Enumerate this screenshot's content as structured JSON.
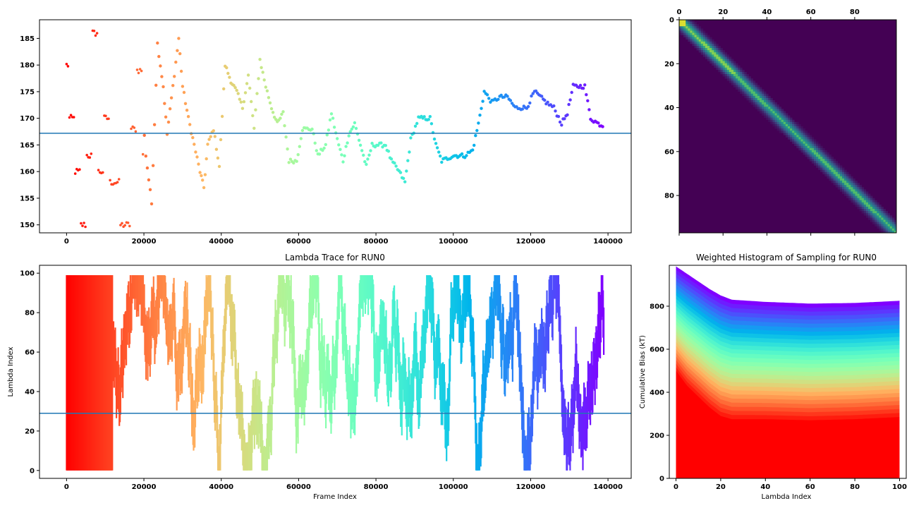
{
  "chart_data": [
    {
      "panel": "top-left",
      "type": "scatter",
      "title": "",
      "xlabel": "",
      "ylabel": "",
      "xlim": [
        -7000,
        146000
      ],
      "ylim": [
        148.5,
        188.5
      ],
      "xticks": [
        0,
        20000,
        40000,
        60000,
        80000,
        100000,
        120000,
        140000
      ],
      "yticks": [
        150,
        155,
        160,
        165,
        170,
        175,
        180,
        185
      ],
      "hline": 167.2,
      "color_scale": "rainbow reversed (red at start, violet at end)",
      "trace": [
        [
          0,
          180
        ],
        [
          1500,
          170
        ],
        [
          3000,
          160
        ],
        [
          4500,
          150
        ],
        [
          6000,
          163
        ],
        [
          7500,
          186
        ],
        [
          9000,
          160
        ],
        [
          10500,
          170
        ],
        [
          12000,
          158
        ],
        [
          15500,
          150
        ],
        [
          17500,
          168
        ],
        [
          19000,
          179
        ],
        [
          20500,
          163
        ],
        [
          22000,
          154
        ],
        [
          23500,
          184
        ],
        [
          25000,
          176
        ],
        [
          26000,
          167
        ],
        [
          27500,
          176
        ],
        [
          29000,
          185
        ],
        [
          30000,
          176
        ],
        [
          31500,
          170
        ],
        [
          33000,
          165
        ],
        [
          34500,
          160
        ],
        [
          35500,
          157
        ],
        [
          36500,
          165
        ],
        [
          38000,
          168
        ],
        [
          39500,
          161
        ],
        [
          41000,
          180
        ],
        [
          42500,
          177
        ],
        [
          44000,
          175
        ],
        [
          45500,
          172
        ],
        [
          47000,
          178
        ],
        [
          48500,
          168
        ],
        [
          50000,
          181
        ],
        [
          51500,
          176
        ],
        [
          53000,
          172
        ],
        [
          54500,
          169
        ],
        [
          56000,
          171
        ],
        [
          57500,
          162
        ],
        [
          59500,
          162
        ],
        [
          61000,
          168
        ],
        [
          63500,
          168
        ],
        [
          65000,
          163
        ],
        [
          67000,
          165
        ],
        [
          68500,
          171
        ],
        [
          70000,
          166
        ],
        [
          71500,
          162
        ],
        [
          73000,
          167
        ],
        [
          74500,
          169
        ],
        [
          76000,
          165
        ],
        [
          77500,
          161
        ],
        [
          79000,
          165
        ],
        [
          82500,
          165
        ],
        [
          84000,
          162
        ],
        [
          86000,
          160
        ],
        [
          87500,
          158
        ],
        [
          89000,
          166
        ],
        [
          91000,
          170
        ],
        [
          94000,
          170
        ],
        [
          95500,
          165
        ],
        [
          97000,
          162
        ],
        [
          100000,
          163
        ],
        [
          103000,
          163
        ],
        [
          105000,
          164
        ],
        [
          106500,
          169
        ],
        [
          108000,
          175
        ],
        [
          110000,
          173
        ],
        [
          112000,
          174
        ],
        [
          114000,
          174
        ],
        [
          116000,
          172
        ],
        [
          119000,
          172
        ],
        [
          121000,
          175
        ],
        [
          124000,
          173
        ],
        [
          126000,
          172
        ],
        [
          128000,
          169
        ],
        [
          129500,
          171
        ],
        [
          131000,
          176
        ],
        [
          134000,
          176
        ],
        [
          135500,
          170
        ],
        [
          137500,
          169
        ],
        [
          139000,
          168.5
        ]
      ]
    },
    {
      "panel": "top-right",
      "type": "heatmap",
      "title": "",
      "xlim": [
        0,
        99
      ],
      "ylim": [
        0,
        97
      ],
      "xticks": [
        0,
        20,
        40,
        60,
        80
      ],
      "yticks": [
        0,
        20,
        40,
        60,
        80
      ],
      "x_axis_position": "top",
      "colormap": "viridis",
      "description": "diagonal band, narrow bright diagonal with wider cyan-green halo"
    },
    {
      "panel": "bottom-left",
      "type": "scatter",
      "title": "Lambda Trace for RUN0",
      "xlabel": "Frame Index",
      "ylabel": "Lambda Index",
      "xlim": [
        -7000,
        146000
      ],
      "ylim": [
        -4,
        104
      ],
      "xticks": [
        0,
        20000,
        40000,
        60000,
        80000,
        100000,
        120000,
        140000
      ],
      "yticks": [
        0,
        20,
        40,
        60,
        80,
        100
      ],
      "hline": 29,
      "value_range": [
        0,
        99
      ],
      "frames": 139000,
      "color_scale": "rainbow reversed (red at start, violet at end)"
    },
    {
      "panel": "bottom-right",
      "type": "area",
      "title": "Weighted Histogram of Sampling for RUN0",
      "xlabel": "Lambda Index",
      "ylabel": "Cumulative Bias (kT)",
      "xlim": [
        -3,
        103
      ],
      "ylim": [
        0,
        990
      ],
      "xticks": [
        0,
        20,
        40,
        60,
        80,
        100
      ],
      "yticks": [
        0,
        200,
        400,
        600,
        800
      ],
      "layers": 30,
      "bottom_curve": [
        [
          0,
          500
        ],
        [
          5,
          430
        ],
        [
          10,
          380
        ],
        [
          15,
          330
        ],
        [
          20,
          290
        ],
        [
          25,
          275
        ],
        [
          40,
          275
        ],
        [
          60,
          270
        ],
        [
          80,
          275
        ],
        [
          100,
          285
        ]
      ],
      "top_curve": [
        [
          0,
          985
        ],
        [
          5,
          950
        ],
        [
          10,
          915
        ],
        [
          15,
          880
        ],
        [
          20,
          850
        ],
        [
          25,
          830
        ],
        [
          40,
          820
        ],
        [
          60,
          812
        ],
        [
          80,
          815
        ],
        [
          100,
          825
        ]
      ],
      "colormap": "rainbow (red at bottom, violet at top)"
    }
  ]
}
